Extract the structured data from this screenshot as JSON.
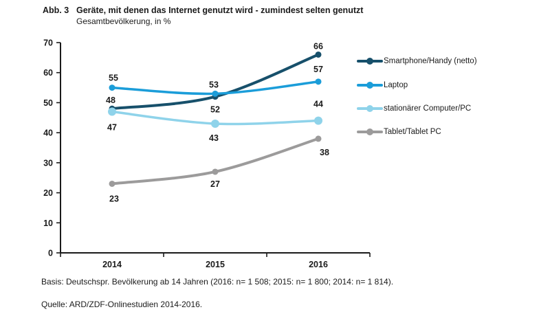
{
  "header": {
    "label": "Abb. 3",
    "title": "Geräte, mit denen das Internet genutzt wird - zumindest selten genutzt",
    "subtitle": "Gesamtbevölkerung, in %"
  },
  "chart_data": {
    "type": "line",
    "x": [
      "2014",
      "2015",
      "2016"
    ],
    "ylim": [
      0,
      70
    ],
    "ytick_step": 10,
    "grid": false,
    "legend_position": "right",
    "series": [
      {
        "name": "Smartphone/Handy (netto)",
        "values": [
          48,
          52,
          66
        ],
        "color": "#17506b",
        "line_width": 4,
        "dot_r": 4.5,
        "label_offsets": [
          [
            -2,
            -8
          ],
          [
            0,
            23
          ],
          [
            0,
            -8
          ]
        ]
      },
      {
        "name": "Laptop",
        "values": [
          55,
          53,
          57
        ],
        "color": "#1b9dd9",
        "line_width": 3.5,
        "dot_r": 4.5,
        "label_offsets": [
          [
            2,
            -10
          ],
          [
            -2,
            -9
          ],
          [
            0,
            -14
          ]
        ]
      },
      {
        "name": "stationärer Computer/PC",
        "values": [
          47,
          43,
          44
        ],
        "color": "#8fd3ea",
        "line_width": 3.5,
        "dot_r": 6,
        "label_offsets": [
          [
            0,
            27
          ],
          [
            -2,
            25
          ],
          [
            0,
            -20
          ]
        ]
      },
      {
        "name": "Tablet/Tablet PC",
        "values": [
          23,
          27,
          38
        ],
        "color": "#9c9b9b",
        "line_width": 4,
        "dot_r": 4.5,
        "label_offsets": [
          [
            3,
            26
          ],
          [
            0,
            22
          ],
          [
            9,
            24
          ]
        ]
      }
    ]
  },
  "footer": {
    "basis": "Basis: Deutschspr. Bevölkerung ab 14 Jahren (2016: n= 1 508; 2015: n= 1 800; 2014: n= 1 814).",
    "quelle": "Quelle: ARD/ZDF-Onlinestudien 2014-2016."
  }
}
